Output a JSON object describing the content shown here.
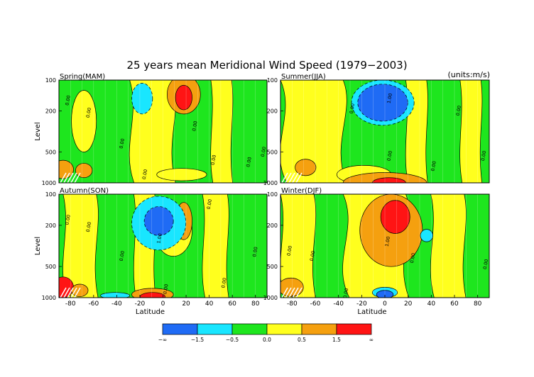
{
  "title": "25 years mean Meridional Wind Speed (1979−2003)",
  "units": "(units:m/s)",
  "chart_data": [
    {
      "type": "heatmap",
      "panel": "Spring(MAM)",
      "xlabel": "",
      "ylabel": "Level",
      "xlim": [
        -90,
        90
      ],
      "yticks": [
        "100",
        "200",
        "500",
        "1000"
      ],
      "xticks": [],
      "contour_labels": [
        "0.00",
        "0.00",
        "0.00",
        "0.00",
        "0.00",
        "0.00",
        "0.00",
        "0.00"
      ],
      "features": [
        {
          "name": "negative-cell",
          "lat": -20,
          "level": 180,
          "value": -1.0
        },
        {
          "name": "positive-jet",
          "lat": 12,
          "level": 180,
          "value": 2.0
        }
      ]
    },
    {
      "type": "heatmap",
      "panel": "Summer(JJA)",
      "xlabel": "",
      "ylabel": "",
      "xlim": [
        -90,
        90
      ],
      "yticks": [
        "100",
        "200",
        "500",
        "1000"
      ],
      "xticks": [],
      "contour_labels": [
        "1.00",
        "0.00",
        "0.00",
        "0.00",
        "0.00",
        "0.00"
      ],
      "features": [
        {
          "name": "negative-cell",
          "lat": 0,
          "level": 180,
          "value": -2.0
        }
      ]
    },
    {
      "type": "heatmap",
      "panel": "Autumn(SON)",
      "xlabel": "Latitude",
      "ylabel": "Level",
      "xlim": [
        -90,
        90
      ],
      "yticks": [
        "100",
        "200",
        "500",
        "1000"
      ],
      "xticks": [
        "-80",
        "-60",
        "-40",
        "-20",
        "0",
        "20",
        "40",
        "60",
        "80"
      ],
      "contour_labels": [
        "0.00",
        "0.00",
        "0.00",
        "0.00",
        "0.00",
        "0.00",
        "1.00",
        "0.00"
      ],
      "features": [
        {
          "name": "negative-cell",
          "lat": -5,
          "level": 200,
          "value": -2.0
        },
        {
          "name": "positive-cell",
          "lat": 15,
          "level": 200,
          "value": 1.0
        }
      ]
    },
    {
      "type": "heatmap",
      "panel": "Winter(DJF)",
      "xlabel": "Latitude",
      "ylabel": "",
      "xlim": [
        -90,
        90
      ],
      "yticks": [
        "100",
        "200",
        "500",
        "1000"
      ],
      "xticks": [
        "-80",
        "-60",
        "-40",
        "-20",
        "0",
        "20",
        "40",
        "60",
        "80"
      ],
      "contour_labels": [
        "1.00",
        "0.00",
        "0.00",
        "0.00",
        "0.00",
        "0.00"
      ],
      "features": [
        {
          "name": "positive-jet",
          "lat": 10,
          "level": 180,
          "value": 2.0
        }
      ]
    }
  ],
  "colorbar": {
    "bins": [
      {
        "color": "#1f6bf5"
      },
      {
        "color": "#19e6ff"
      },
      {
        "color": "#1ee61e"
      },
      {
        "color": "#ffff1e"
      },
      {
        "color": "#f5a00f"
      },
      {
        "color": "#ff1414"
      }
    ],
    "labels": [
      "−∞",
      "−1.5",
      "−0.5",
      "0.0",
      "0.5",
      "1.5",
      "∞"
    ]
  }
}
